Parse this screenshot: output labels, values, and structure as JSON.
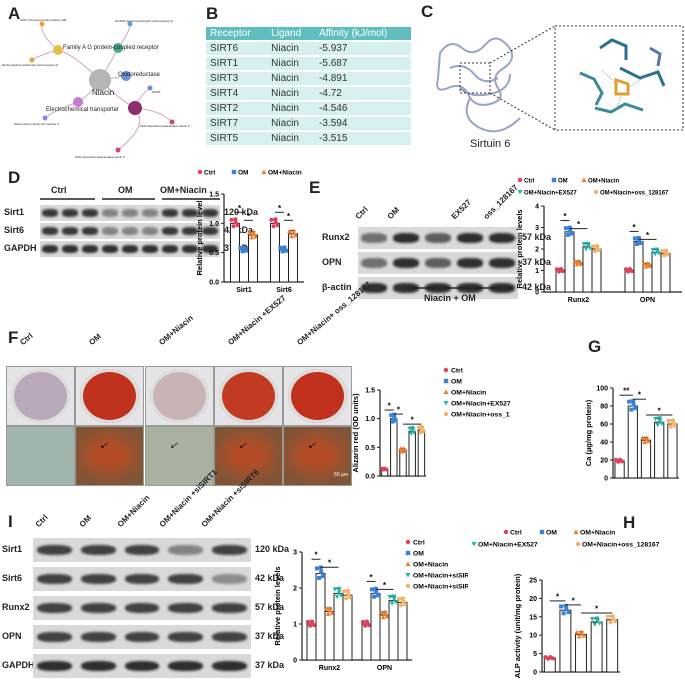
{
  "panels": {
    "A": "A",
    "B": "B",
    "C": "C",
    "D": "D",
    "E": "E",
    "F": "F",
    "G": "G",
    "H": "H",
    "I": "I"
  },
  "network": {
    "center": "Niacin",
    "gpcr": "Family A G protein-coupled receptor",
    "oxido": "Oxidoreductase",
    "transporter": "Electrochemical transporter",
    "leaf_a": "GPR (Tyrosine-protein kinase) 109",
    "leaf_b": "HCAR2 (Hydroxycarboxylic acid receptor 2)",
    "leaf_c": "HCA3 (Hydroxycarboxylic acid receptor 3)",
    "leaf_d": "NNMT",
    "leaf_e": "Solute carrier family 22 member 6",
    "leaf_f": "NAD-dependent deacetylase sirtuin 6",
    "leaf_g": "NAD-dependent deacetylase sirtuin 5"
  },
  "table": {
    "headers": [
      "Receptor",
      "Ligand",
      "Affinity (kJ/mol)"
    ],
    "rows": [
      [
        "SIRT6",
        "Niacin",
        "-5.937"
      ],
      [
        "SIRT1",
        "Niacin",
        "-5.687"
      ],
      [
        "SIRT3",
        "Niacin",
        "-4.891"
      ],
      [
        "SIRT4",
        "Niacin",
        "-4.72"
      ],
      [
        "SIRT2",
        "Niacin",
        "-4.546"
      ],
      [
        "SIRT7",
        "Niacin",
        "-3.594"
      ],
      [
        "SIRT5",
        "Niacin",
        "-3.515"
      ]
    ]
  },
  "protein": {
    "caption": "Sirtuin 6"
  },
  "blot_D": {
    "groups": [
      "Ctrl",
      "OM",
      "OM+Niacin"
    ],
    "rows": [
      {
        "name": "Sirt1",
        "kda": "120 kDa"
      },
      {
        "name": "Sirt6",
        "kda": "42 kDa"
      },
      {
        "name": "GAPDH",
        "kda": "37 kDa"
      }
    ]
  },
  "blot_E": {
    "groups": [
      "Ctrl",
      "OM",
      "",
      "EX527",
      "oss_128167"
    ],
    "bottom": "Niacin + OM",
    "rows": [
      {
        "name": "Runx2",
        "kda": "57 kDa"
      },
      {
        "name": "OPN",
        "kda": "37 kDa"
      },
      {
        "name": "β-actin",
        "kda": "42 kDa"
      }
    ]
  },
  "blot_I": {
    "groups": [
      "Ctrl",
      "OM",
      "OM+Niacin",
      "OM+Niacin +siSIRT1",
      "OM+Niacin +siSIRT6"
    ],
    "rows": [
      {
        "name": "Sirt1",
        "kda": "120 kDa"
      },
      {
        "name": "Sirt6",
        "kda": "42 kDa"
      },
      {
        "name": "Runx2",
        "kda": "57 kDa"
      },
      {
        "name": "OPN",
        "kda": "37 kDa"
      },
      {
        "name": "GAPDH",
        "kda": "37 kDa"
      }
    ]
  },
  "stain_F": {
    "groups": [
      "Ctrl",
      "OM",
      "OM+Niacin",
      "OM+Niacin +EX527",
      "OM+Niacin+ oss_128167"
    ],
    "scale": "50 µm",
    "dish_colors": [
      "#b9a9ba",
      "#c0311e",
      "#c8b4b4",
      "#c23a22",
      "#c0301c"
    ]
  },
  "colors": {
    "ctrl": "#e0405a",
    "om": "#3b82d6",
    "niacin": "#f07a22",
    "ex527": "#1fb5a8",
    "oss": "#f3b36a"
  },
  "chart_data": [
    {
      "id": "D",
      "type": "bar",
      "ylabel": "Relative protein level",
      "categories": [
        "Sirt1",
        "Sirt6"
      ],
      "ylim": [
        0,
        1.5
      ],
      "yticks": [
        "0.0",
        "0.5",
        "1.0",
        "1.5"
      ],
      "legend": [
        "Ctrl",
        "OM",
        "OM+Niacin"
      ],
      "series": [
        {
          "name": "Ctrl",
          "values": [
            1.0,
            1.0
          ]
        },
        {
          "name": "OM",
          "values": [
            0.55,
            0.55
          ]
        },
        {
          "name": "OM+Niacin",
          "values": [
            0.8,
            0.82
          ]
        }
      ],
      "sig": "*"
    },
    {
      "id": "E",
      "type": "bar",
      "ylabel": "Relative protein levels",
      "categories": [
        "Runx2",
        "OPN"
      ],
      "ylim": [
        0,
        4
      ],
      "yticks": [
        "0",
        "1",
        "2",
        "3",
        "4"
      ],
      "legend": [
        "Ctrl",
        "OM",
        "OM+Niacin",
        "OM+Niacin+EX527",
        "OM+Niacin+oss_128167"
      ],
      "series": [
        {
          "name": "Ctrl",
          "values": [
            1.0,
            1.0
          ]
        },
        {
          "name": "OM",
          "values": [
            2.8,
            2.35
          ]
        },
        {
          "name": "OM+Niacin",
          "values": [
            1.35,
            1.25
          ]
        },
        {
          "name": "OM+Niacin+EX527",
          "values": [
            2.1,
            1.85
          ]
        },
        {
          "name": "OM+Niacin+oss_128167",
          "values": [
            2.0,
            1.8
          ]
        }
      ],
      "sig": "*"
    },
    {
      "id": "F",
      "type": "bar",
      "ylabel": "Alizarin red (OD units)",
      "categories": [
        "Ctrl",
        "OM",
        "OM+Niacin",
        "OM+Niacin+EX527",
        "OM+Niacin+oss_128167"
      ],
      "ylim": [
        0,
        1.5
      ],
      "yticks": [
        "0.0",
        "0.5",
        "1.0",
        "1.5"
      ],
      "legend": [
        "Ctrl",
        "OM",
        "OM+Niacin",
        "OM+Niacin+EX527",
        "OM+Niacin+oss_128167"
      ],
      "values": [
        0.12,
        1.0,
        0.45,
        0.78,
        0.8
      ],
      "sig": "*"
    },
    {
      "id": "G",
      "type": "bar",
      "ylabel": "Ca (µg/mg protein)",
      "categories": [
        "Ctrl",
        "OM",
        "OM+Niacin",
        "OM+Niacin+EX527",
        "OM+Niacin+oss_128167"
      ],
      "ylim": [
        0,
        100
      ],
      "yticks": [
        "0",
        "20",
        "40",
        "60",
        "80",
        "100"
      ],
      "values": [
        19,
        80,
        42,
        62,
        60
      ],
      "sig": "*",
      "sig2": "**"
    },
    {
      "id": "H",
      "type": "bar",
      "ylabel": "ALP activity (unit/mg protein)",
      "categories": [
        "Ctrl",
        "OM",
        "OM+Niacin",
        "OM+Niacin+EX527",
        "OM+Niacin+oss_128167"
      ],
      "ylim": [
        0,
        25
      ],
      "yticks": [
        "0",
        "5",
        "10",
        "15",
        "20",
        "25"
      ],
      "legend": [
        "Ctrl",
        "OM",
        "OM+Niacin",
        "OM+Niacin+EX527",
        "OM+Niacin+oss_128167"
      ],
      "values": [
        3.8,
        16.8,
        10.2,
        13.6,
        14.2
      ],
      "sig": "*"
    },
    {
      "id": "I",
      "type": "bar",
      "ylabel": "Relative protein levels",
      "categories": [
        "Runx2",
        "OPN"
      ],
      "ylim": [
        0,
        3
      ],
      "yticks": [
        "0",
        "1",
        "2",
        "3"
      ],
      "legend": [
        "Ctrl",
        "OM",
        "OM+Niacin",
        "OM+Niacin+siSIRT1",
        "OM+Niacin+siSIRT6"
      ],
      "series": [
        {
          "name": "Ctrl",
          "values": [
            1.0,
            1.0
          ]
        },
        {
          "name": "OM",
          "values": [
            2.4,
            1.85
          ]
        },
        {
          "name": "OM+Niacin",
          "values": [
            1.35,
            1.25
          ]
        },
        {
          "name": "OM+Niacin+siSIRT1",
          "values": [
            1.85,
            1.65
          ]
        },
        {
          "name": "OM+Niacin+siSIRT6",
          "values": [
            1.8,
            1.6
          ]
        }
      ],
      "sig": "*"
    }
  ]
}
